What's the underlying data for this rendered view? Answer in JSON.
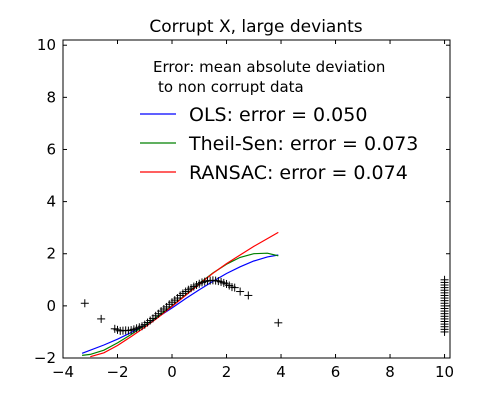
{
  "chart_data": {
    "type": "scatter",
    "title": "Corrupt X, large deviants",
    "xlabel": "",
    "ylabel": "",
    "xlim": [
      -4,
      10.2
    ],
    "ylim": [
      -2,
      10.2
    ],
    "xticks": [
      -4,
      -2,
      0,
      2,
      4,
      6,
      8,
      10
    ],
    "yticks": [
      -2,
      0,
      2,
      4,
      6,
      8,
      10
    ],
    "grid": false,
    "legend_position": "top-right",
    "legend_title": [
      "Error: mean absolute deviation",
      "to non corrupt data"
    ],
    "series": [
      {
        "name": "OLS: error = 0.050",
        "kind": "line",
        "color": "#0000ff",
        "x": [
          -3.3,
          -2.5,
          -2.0,
          -1.5,
          -1.0,
          -0.5,
          0.0,
          0.5,
          1.0,
          1.5,
          2.0,
          2.5,
          3.0,
          3.5,
          3.9
        ],
        "y": [
          -1.82,
          -1.5,
          -1.28,
          -1.02,
          -0.74,
          -0.42,
          -0.08,
          0.28,
          0.62,
          0.94,
          1.24,
          1.5,
          1.72,
          1.88,
          1.95
        ]
      },
      {
        "name": "Theil-Sen: error = 0.073",
        "kind": "line",
        "color": "#008000",
        "x": [
          -3.3,
          -3.0,
          -2.5,
          -2.0,
          -1.5,
          -1.0,
          -0.5,
          0.0,
          0.5,
          1.0,
          1.5,
          2.0,
          2.5,
          3.0,
          3.5,
          3.9
        ],
        "y": [
          -1.9,
          -1.86,
          -1.7,
          -1.42,
          -1.1,
          -0.74,
          -0.38,
          0.0,
          0.42,
          0.86,
          1.26,
          1.6,
          1.86,
          2.0,
          2.02,
          1.92
        ]
      },
      {
        "name": "RANSAC: error = 0.074",
        "kind": "line",
        "color": "#ff0000",
        "x": [
          -3.0,
          -2.5,
          -2.0,
          -1.5,
          -1.0,
          -0.5,
          0.0,
          0.5,
          1.0,
          1.5,
          2.0,
          2.5,
          3.0,
          3.5,
          3.9
        ],
        "y": [
          -1.95,
          -1.8,
          -1.52,
          -1.18,
          -0.82,
          -0.44,
          -0.02,
          0.4,
          0.84,
          1.25,
          1.62,
          1.95,
          2.28,
          2.58,
          2.82
        ]
      },
      {
        "name": "",
        "kind": "points",
        "marker": "+",
        "color": "#000000",
        "x": [
          -3.2,
          -2.6,
          -2.1,
          -2.0,
          -1.9,
          -1.8,
          -1.7,
          -1.6,
          -1.5,
          -1.4,
          -1.3,
          -1.2,
          -1.1,
          -1.0,
          -0.9,
          -0.8,
          -0.7,
          -0.6,
          -0.5,
          -0.4,
          -0.3,
          -0.2,
          -0.1,
          0.0,
          0.1,
          0.2,
          0.3,
          0.4,
          0.5,
          0.6,
          0.7,
          0.8,
          0.9,
          1.0,
          1.1,
          1.2,
          1.3,
          1.4,
          1.5,
          1.6,
          1.7,
          1.8,
          1.9,
          2.0,
          2.1,
          2.2,
          2.3,
          2.5,
          2.8,
          3.9,
          10.0,
          10.0,
          10.0,
          10.0,
          10.0,
          10.0,
          10.0,
          10.0,
          10.0,
          10.0,
          10.0,
          10.0,
          10.0,
          10.0,
          10.0,
          10.0,
          10.0,
          10.0,
          10.0,
          10.0,
          10.0
        ],
        "y": [
          0.1,
          -0.5,
          -0.88,
          -0.92,
          -0.96,
          -0.95,
          -0.94,
          -0.95,
          -0.93,
          -0.9,
          -0.86,
          -0.82,
          -0.78,
          -0.72,
          -0.64,
          -0.56,
          -0.48,
          -0.38,
          -0.3,
          -0.2,
          -0.12,
          -0.04,
          0.06,
          0.14,
          0.22,
          0.3,
          0.4,
          0.48,
          0.55,
          0.62,
          0.68,
          0.74,
          0.8,
          0.85,
          0.9,
          0.93,
          0.96,
          0.97,
          0.98,
          0.97,
          0.95,
          0.92,
          0.88,
          0.84,
          0.78,
          0.72,
          0.7,
          0.55,
          0.4,
          -0.65,
          1.0,
          0.9,
          0.8,
          0.7,
          0.6,
          0.5,
          0.4,
          0.3,
          0.2,
          0.1,
          0.0,
          -0.1,
          -0.2,
          -0.3,
          -0.4,
          -0.5,
          -0.6,
          -0.7,
          -0.8,
          -0.9,
          -1.0
        ]
      }
    ]
  }
}
